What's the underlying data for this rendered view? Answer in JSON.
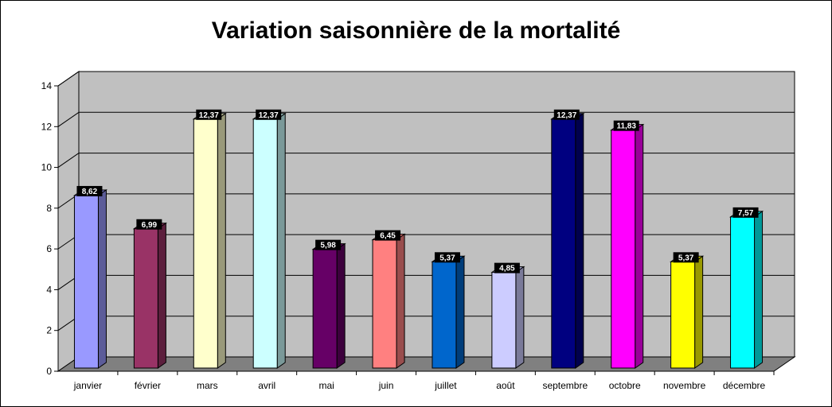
{
  "chart_data": {
    "type": "bar",
    "title": "Variation saisonnière de la mortalité",
    "categories": [
      "janvier",
      "février",
      "mars",
      "avril",
      "mai",
      "juin",
      "juillet",
      "août",
      "septembre",
      "octobre",
      "novembre",
      "décembre"
    ],
    "values": [
      8.62,
      6.99,
      12.37,
      12.37,
      5.98,
      6.45,
      5.37,
      4.85,
      12.37,
      11.83,
      5.37,
      7.57
    ],
    "value_labels": [
      "8,62",
      "6,99",
      "12,37",
      "12,37",
      "5,98",
      "6,45",
      "5,37",
      "4,85",
      "12,37",
      "11,83",
      "5,37",
      "7,57"
    ],
    "y_ticks": [
      "0",
      "2",
      "4",
      "6",
      "8",
      "10",
      "12",
      "14"
    ],
    "ylim": [
      0,
      14
    ],
    "grid": true,
    "legend": "none",
    "colors": [
      "#9999ff",
      "#993366",
      "#ffffcc",
      "#ccffff",
      "#660066",
      "#ff8080",
      "#0066cc",
      "#ccccff",
      "#000080",
      "#ff00ff",
      "#ffff00",
      "#00ffff"
    ],
    "wall_color": "#c0c0c0",
    "floor_color": "#808080"
  }
}
